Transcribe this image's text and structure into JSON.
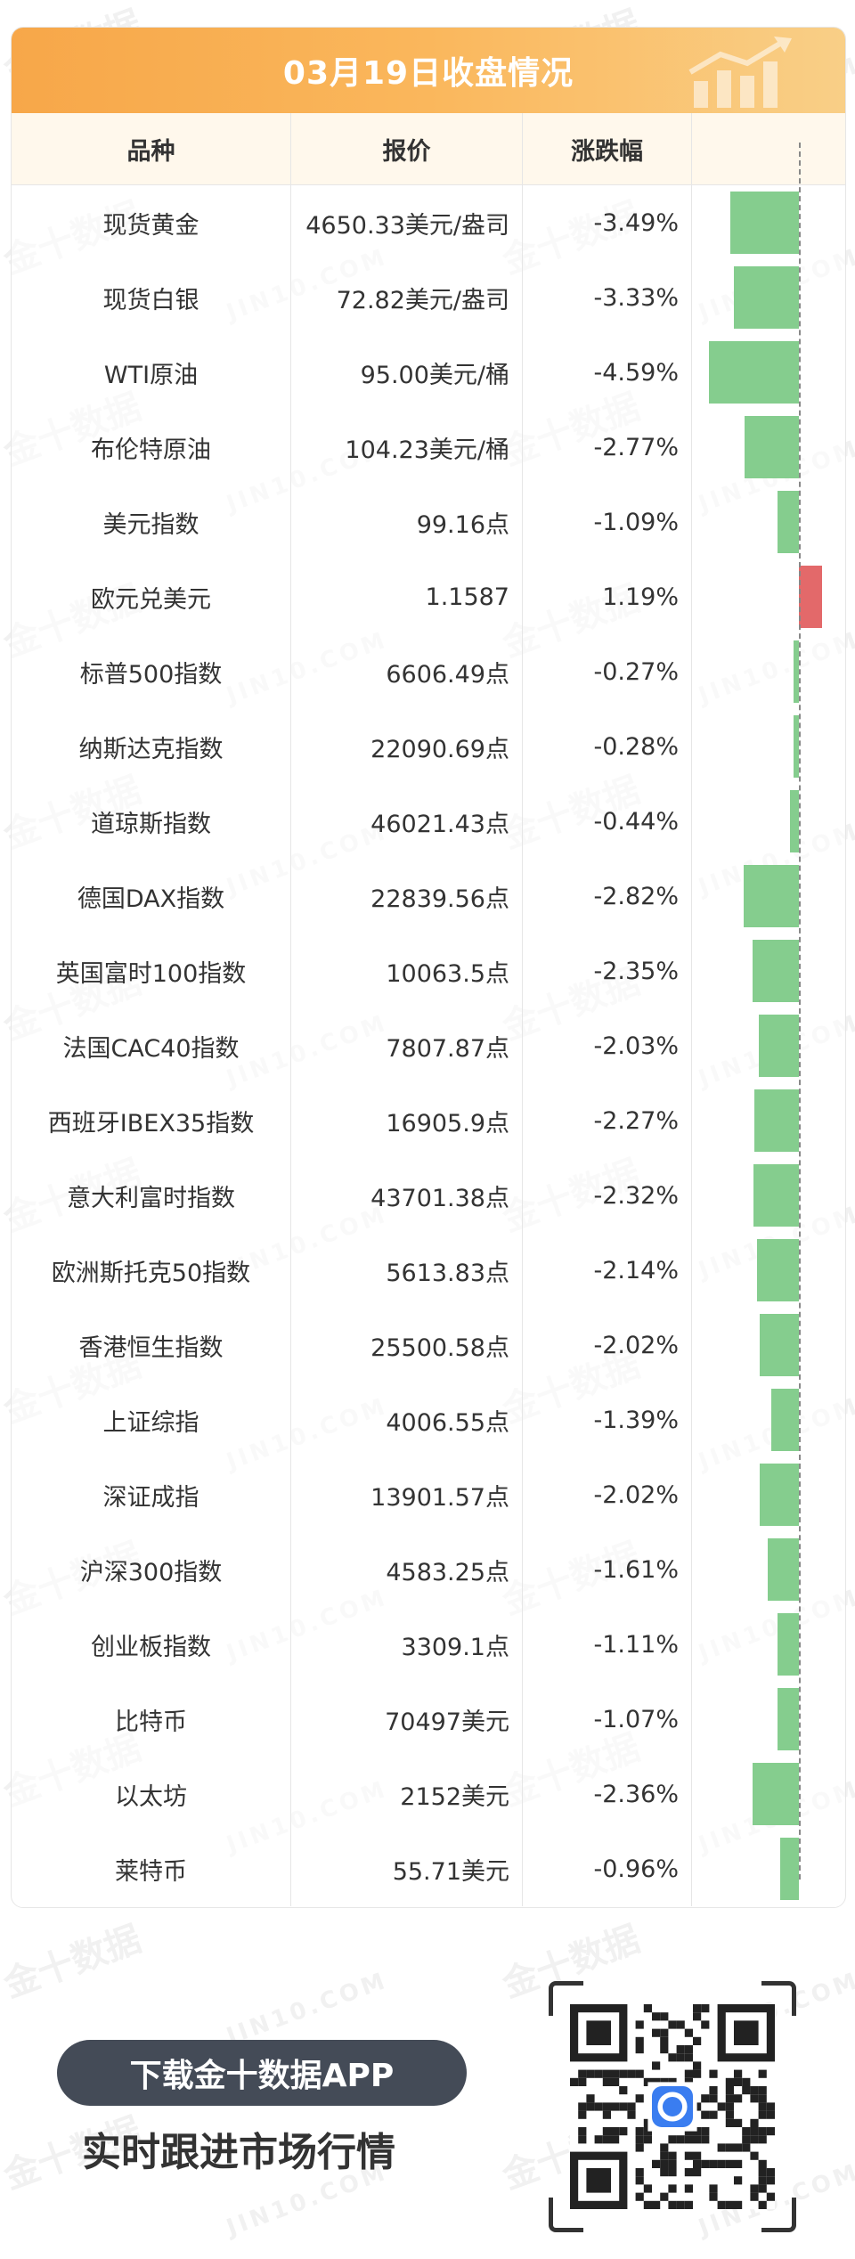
{
  "banner": {
    "title": "03月19日收盘情况",
    "icon": "trend-up-icon"
  },
  "table": {
    "headers": {
      "name": "品种",
      "price": "报价",
      "change": "涨跌幅"
    },
    "rows": [
      {
        "name": "现货黄金",
        "price": "4650.33美元/盎司",
        "change": "-3.49%",
        "value": -3.49
      },
      {
        "name": "现货白银",
        "price": "72.82美元/盎司",
        "change": "-3.33%",
        "value": -3.33
      },
      {
        "name": "WTI原油",
        "price": "95.00美元/桶",
        "change": "-4.59%",
        "value": -4.59
      },
      {
        "name": "布伦特原油",
        "price": "104.23美元/桶",
        "change": "-2.77%",
        "value": -2.77
      },
      {
        "name": "美元指数",
        "price": "99.16点",
        "change": "-1.09%",
        "value": -1.09
      },
      {
        "name": "欧元兑美元",
        "price": "1.1587",
        "change": "1.19%",
        "value": 1.19
      },
      {
        "name": "标普500指数",
        "price": "6606.49点",
        "change": "-0.27%",
        "value": -0.27
      },
      {
        "name": "纳斯达克指数",
        "price": "22090.69点",
        "change": "-0.28%",
        "value": -0.28
      },
      {
        "name": "道琼斯指数",
        "price": "46021.43点",
        "change": "-0.44%",
        "value": -0.44
      },
      {
        "name": "德国DAX指数",
        "price": "22839.56点",
        "change": "-2.82%",
        "value": -2.82
      },
      {
        "name": "英国富时100指数",
        "price": "10063.5点",
        "change": "-2.35%",
        "value": -2.35
      },
      {
        "name": "法国CAC40指数",
        "price": "7807.87点",
        "change": "-2.03%",
        "value": -2.03
      },
      {
        "name": "西班牙IBEX35指数",
        "price": "16905.9点",
        "change": "-2.27%",
        "value": -2.27
      },
      {
        "name": "意大利富时指数",
        "price": "43701.38点",
        "change": "-2.32%",
        "value": -2.32
      },
      {
        "name": "欧洲斯托克50指数",
        "price": "5613.83点",
        "change": "-2.14%",
        "value": -2.14
      },
      {
        "name": "香港恒生指数",
        "price": "25500.58点",
        "change": "-2.02%",
        "value": -2.02
      },
      {
        "name": "上证综指",
        "price": "4006.55点",
        "change": "-1.39%",
        "value": -1.39
      },
      {
        "name": "深证成指",
        "price": "13901.57点",
        "change": "-2.02%",
        "value": -2.02
      },
      {
        "name": "沪深300指数",
        "price": "4583.25点",
        "change": "-1.61%",
        "value": -1.61
      },
      {
        "name": "创业板指数",
        "price": "3309.1点",
        "change": "-1.11%",
        "value": -1.11
      },
      {
        "name": "比特币",
        "price": "70497美元",
        "change": "-1.07%",
        "value": -1.07
      },
      {
        "name": "以太坊",
        "price": "2152美元",
        "change": "-2.36%",
        "value": -2.36
      },
      {
        "name": "莱特币",
        "price": "55.71美元",
        "change": "-0.96%",
        "value": -0.96
      }
    ]
  },
  "colors": {
    "negative": "#85cd8e",
    "positive": "#e3696a",
    "banner_start": "#f7a749",
    "banner_end": "#f9cf87",
    "header_bg": "#fff8ec"
  },
  "watermark": {
    "cn": "金十数据",
    "en": "JIN10.COM"
  },
  "promo": {
    "button_label": "下载金十数据APP",
    "tagline": "实时跟进市场行情",
    "qr_icon": "qr-code-icon",
    "app_icon": "jin10-app-icon"
  }
}
